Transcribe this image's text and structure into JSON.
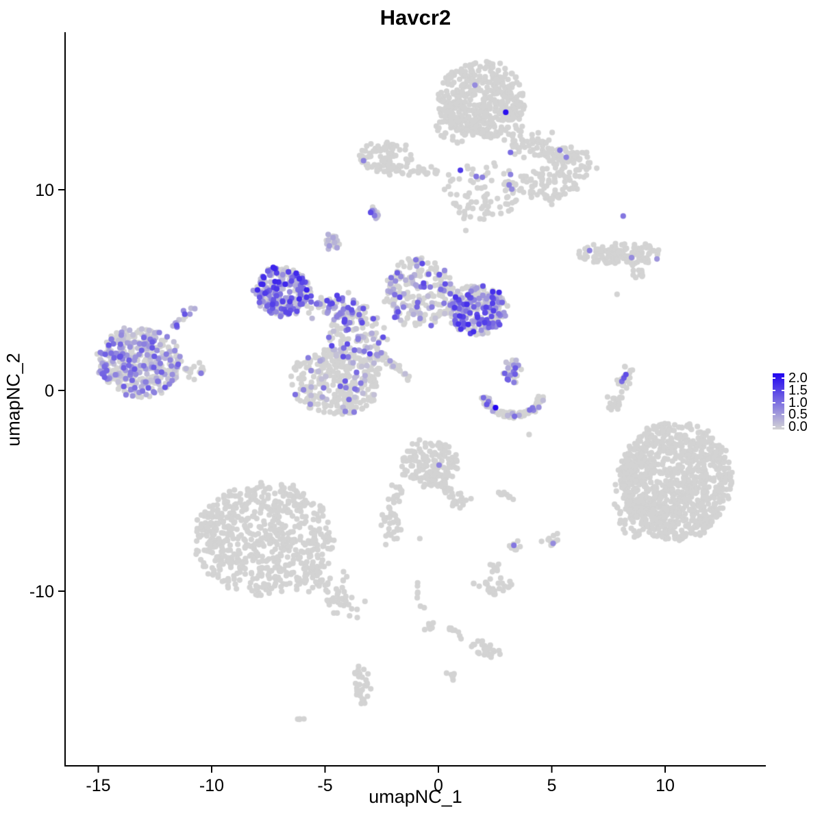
{
  "title": "Havcr2",
  "legend": {
    "ticks": [
      "2.0",
      "1.5",
      "1.0",
      "0.5",
      "0.0"
    ],
    "tick_values": [
      2.0,
      1.5,
      1.0,
      0.5,
      0.0
    ],
    "min": 0.0,
    "max": 2.0,
    "color_low": "#D3D3D3",
    "color_high": "#2105F0"
  },
  "chart_data": {
    "type": "scatter",
    "title": "Havcr2",
    "xlabel": "umapNC_1",
    "ylabel": "umapNC_2",
    "xlim": [
      -16.5,
      14.4
    ],
    "ylim": [
      -18.7,
      17.8
    ],
    "x_ticks": [
      -15,
      -10,
      -5,
      0,
      5,
      10
    ],
    "y_ticks": [
      -10,
      0,
      10
    ],
    "grid": false,
    "legend_position": "right",
    "point_color_zero": "#D3D3D3",
    "point_color_max": "#2105F0",
    "description": "UMAP feature plot of Havcr2 expression (0 to 2) across single cells; gray = no expression, purple-blue = expressing.",
    "clusters": [
      {
        "name": "top-main",
        "type": "ellipse",
        "x": 1.9,
        "y": 14.5,
        "rx": 1.9,
        "ry": 1.9,
        "n": 420,
        "expr": 0,
        "emax": 0
      },
      {
        "name": "top-sub",
        "type": "ellipse",
        "x": 0.75,
        "y": 13.3,
        "rx": 0.85,
        "ry": 0.95,
        "n": 60,
        "expr": 0,
        "emax": 0
      },
      {
        "name": "top-lower-scatter",
        "type": "ellipse",
        "x": 1.9,
        "y": 9.9,
        "rx": 1.8,
        "ry": 1.5,
        "n": 75,
        "expr": 0,
        "emax": 0
      },
      {
        "name": "top-arm-right",
        "type": "band",
        "x1": 3.2,
        "y1": 12.8,
        "x2": 6.4,
        "y2": 11.2,
        "w": 0.35,
        "n": 130,
        "expr": 0,
        "emax": 0
      },
      {
        "name": "top-arm-blob",
        "type": "ellipse",
        "x": 4.9,
        "y": 10.25,
        "rx": 1.35,
        "ry": 0.95,
        "n": 75,
        "expr": 0,
        "emax": 0
      },
      {
        "name": "top-mini-blob",
        "type": "ellipse",
        "x": 3.15,
        "y": 10.15,
        "rx": 0.3,
        "ry": 0.3,
        "n": 10,
        "expr": 0,
        "emax": 0
      },
      {
        "name": "topleft-small",
        "type": "ellipse",
        "x": -2.3,
        "y": 11.6,
        "rx": 1.2,
        "ry": 0.78,
        "n": 85,
        "expr": 0.01,
        "emax": 0.6
      },
      {
        "name": "topleft-trail",
        "type": "band",
        "x1": -1.6,
        "y1": 11.0,
        "x2": -0.1,
        "y2": 10.85,
        "w": 0.12,
        "n": 20,
        "expr": 0,
        "emax": 0
      },
      {
        "name": "purple-streak-mid",
        "type": "band",
        "x1": -3.15,
        "y1": 9.05,
        "x2": -2.6,
        "y2": 8.55,
        "w": 0.1,
        "n": 12,
        "expr": 0.75,
        "emax": 1.2
      },
      {
        "name": "small-blob-mix",
        "type": "ellipse",
        "x": -4.65,
        "y": 7.35,
        "rx": 0.3,
        "ry": 0.42,
        "n": 22,
        "expr": 0.45,
        "emax": 0.7
      },
      {
        "name": "purple-main",
        "type": "ellipse",
        "x": -6.9,
        "y": 4.95,
        "rx": 1.2,
        "ry": 1.25,
        "n": 240,
        "expr": 0.72,
        "emax": 1.6
      },
      {
        "name": "purple-bridge",
        "type": "band",
        "x1": -5.7,
        "y1": 4.4,
        "x2": -3.4,
        "y2": 3.7,
        "w": 0.3,
        "n": 75,
        "expr": 0.5,
        "emax": 1.3
      },
      {
        "name": "center-mix",
        "type": "ellipse",
        "x": -3.6,
        "y": 2.7,
        "rx": 1.3,
        "ry": 1.6,
        "n": 130,
        "expr": 0.42,
        "emax": 1.3
      },
      {
        "name": "center-gray-blob",
        "type": "ellipse",
        "x": -4.5,
        "y": 0.45,
        "rx": 2.05,
        "ry": 1.7,
        "n": 300,
        "expr": 0.13,
        "emax": 1.1
      },
      {
        "name": "diag-streak",
        "type": "band",
        "x1": -2.5,
        "y1": 1.75,
        "x2": -1.2,
        "y2": 0.55,
        "w": 0.08,
        "n": 30,
        "expr": 0.1,
        "emax": 1.0
      },
      {
        "name": "fan-cluster",
        "type": "ellipse",
        "x": -0.85,
        "y": 4.85,
        "rx": 1.5,
        "ry": 1.8,
        "n": 210,
        "expr": 0.33,
        "emax": 1.2
      },
      {
        "name": "right-purple",
        "type": "ellipse",
        "x": 1.7,
        "y": 4.0,
        "rx": 1.3,
        "ry": 1.25,
        "n": 240,
        "expr": 0.55,
        "emax": 1.5
      },
      {
        "name": "crescent-top",
        "type": "ellipse",
        "x": 3.25,
        "y": 1.0,
        "rx": 0.4,
        "ry": 0.65,
        "n": 28,
        "expr": 0.5,
        "emax": 1.2
      },
      {
        "name": "crescent-arc",
        "type": "arc",
        "x": 3.3,
        "y": -0.3,
        "rx": 1.35,
        "ry": 1.0,
        "n": 85,
        "expr": 0.22,
        "emax": 1.2
      },
      {
        "name": "left-big-purple",
        "type": "ellipse",
        "x": -13.2,
        "y": 1.4,
        "rx": 1.8,
        "ry": 1.75,
        "n": 400,
        "expr": 0.5,
        "emax": 1.1
      },
      {
        "name": "left-tail",
        "type": "band",
        "x1": -11.6,
        "y1": 1.15,
        "x2": -10.3,
        "y2": 1.0,
        "w": 0.2,
        "n": 22,
        "expr": 0.1,
        "emax": 0.8
      },
      {
        "name": "left-arm-up",
        "type": "band",
        "x1": -11.9,
        "y1": 3.0,
        "x2": -10.6,
        "y2": 4.4,
        "w": 0.15,
        "n": 15,
        "expr": 0.7,
        "emax": 1.1
      },
      {
        "name": "midright-horizontal",
        "type": "ellipse",
        "x": 8.05,
        "y": 6.8,
        "rx": 1.85,
        "ry": 0.55,
        "n": 115,
        "expr": 0,
        "emax": 0
      },
      {
        "name": "midright-streak",
        "type": "band",
        "x1": 8.55,
        "y1": 6.2,
        "x2": 9.0,
        "y2": 5.7,
        "w": 0.1,
        "n": 10,
        "expr": 0,
        "emax": 0
      },
      {
        "name": "right-comma",
        "type": "band",
        "x1": 7.65,
        "y1": -1.15,
        "x2": 8.35,
        "y2": 1.0,
        "w": 0.12,
        "n": 48,
        "expr": 0,
        "emax": 0
      },
      {
        "name": "right-big",
        "type": "ellipse",
        "x": 10.5,
        "y": -4.5,
        "rx": 2.45,
        "ry": 2.95,
        "n": 900,
        "expr": 0,
        "emax": 0
      },
      {
        "name": "right-big-edge",
        "type": "ellipse",
        "x": 8.7,
        "y": -5.0,
        "rx": 0.9,
        "ry": 2.4,
        "n": 120,
        "expr": 0,
        "emax": 0
      },
      {
        "name": "bottomleft-big",
        "type": "ellipse",
        "x": -7.7,
        "y": -7.4,
        "rx": 3.1,
        "ry": 2.8,
        "n": 650,
        "expr": 0,
        "emax": 0
      },
      {
        "name": "bottomleft-tail",
        "type": "band",
        "x1": -5.55,
        "y1": -9.3,
        "x2": -3.75,
        "y2": -10.8,
        "w": 0.35,
        "n": 60,
        "expr": 0,
        "emax": 0
      },
      {
        "name": "bottom-center",
        "type": "ellipse",
        "x": -0.35,
        "y": -3.6,
        "rx": 1.3,
        "ry": 1.2,
        "n": 150,
        "expr": 0,
        "emax": 0
      },
      {
        "name": "bottom-center-tail",
        "type": "band",
        "x1": 0.3,
        "y1": -4.8,
        "x2": 1.2,
        "y2": -5.8,
        "w": 0.2,
        "n": 30,
        "expr": 0,
        "emax": 0
      },
      {
        "name": "bottom-center-arm",
        "type": "band",
        "x1": -1.8,
        "y1": -4.7,
        "x2": -2.1,
        "y2": -6.2,
        "w": 0.15,
        "n": 20,
        "expr": 0,
        "emax": 0
      },
      {
        "name": "streak-u",
        "type": "band",
        "x1": 2.7,
        "y1": -5.05,
        "x2": 3.3,
        "y2": -5.4,
        "w": 0.08,
        "n": 9,
        "expr": 0,
        "emax": 0
      },
      {
        "name": "left-arm-blob",
        "type": "ellipse",
        "x": -2.1,
        "y": -6.97,
        "rx": 0.4,
        "ry": 0.8,
        "n": 24,
        "expr": 0,
        "emax": 0
      },
      {
        "name": "blob-w1",
        "type": "ellipse",
        "x": 3.35,
        "y": -7.7,
        "rx": 0.25,
        "ry": 0.3,
        "n": 8,
        "expr": 0,
        "emax": 0
      },
      {
        "name": "blob-w2",
        "type": "ellipse",
        "x": 5.1,
        "y": -7.5,
        "rx": 0.3,
        "ry": 0.35,
        "n": 9,
        "expr": 0,
        "emax": 0
      },
      {
        "name": "blob-x",
        "type": "ellipse",
        "x": 2.45,
        "y": -8.85,
        "rx": 0.3,
        "ry": 0.25,
        "n": 8,
        "expr": 0,
        "emax": 0
      },
      {
        "name": "blob-y",
        "type": "ellipse",
        "x": 2.4,
        "y": -9.7,
        "rx": 0.85,
        "ry": 0.4,
        "n": 26,
        "expr": 0,
        "emax": 0
      },
      {
        "name": "trail-z",
        "type": "band",
        "x1": -1.1,
        "y1": -9.4,
        "x2": -0.25,
        "y2": -12.2,
        "w": 0.12,
        "n": 13,
        "expr": 0,
        "emax": 0
      },
      {
        "name": "streak-z2",
        "type": "band",
        "x1": 0.45,
        "y1": -11.9,
        "x2": 1.05,
        "y2": -12.3,
        "w": 0.08,
        "n": 8,
        "expr": 0,
        "emax": 0
      },
      {
        "name": "blob-z3",
        "type": "ellipse",
        "x": 2.1,
        "y": -12.9,
        "rx": 0.7,
        "ry": 0.35,
        "angle": -25,
        "n": 26,
        "expr": 0,
        "emax": 0
      },
      {
        "name": "streak-z4",
        "type": "band",
        "x1": 0.42,
        "y1": -14.0,
        "x2": 0.76,
        "y2": -14.4,
        "w": 0.06,
        "n": 6,
        "expr": 0,
        "emax": 0
      },
      {
        "name": "vert-small",
        "type": "ellipse",
        "x": -3.4,
        "y": -14.7,
        "rx": 0.35,
        "ry": 0.95,
        "n": 30,
        "expr": 0,
        "emax": 0
      },
      {
        "name": "streak-bb",
        "type": "band",
        "x1": -6.25,
        "y1": -16.2,
        "x2": -6.0,
        "y2": -16.5,
        "w": 0.06,
        "n": 4,
        "expr": 0,
        "emax": 0
      }
    ],
    "singles": [
      [
        -3.3,
        11.45,
        0.8
      ],
      [
        1.61,
        15.21,
        0.7
      ],
      [
        2.97,
        13.86,
        1.9
      ],
      [
        3.18,
        11.86,
        1.0
      ],
      [
        5.36,
        11.97,
        0.9
      ],
      [
        5.64,
        11.62,
        0.8
      ],
      [
        3.18,
        10.76,
        0.8
      ],
      [
        0.97,
        10.97,
        1.5
      ],
      [
        1.67,
        10.66,
        0.9
      ],
      [
        1.94,
        10.62,
        0.8
      ],
      [
        3.12,
        10.24,
        0.8
      ],
      [
        3.24,
        10.03,
        0.7
      ],
      [
        8.15,
        8.69,
        0.9
      ],
      [
        6.67,
        6.97,
        0.8
      ],
      [
        8.52,
        6.62,
        0.7
      ],
      [
        9.64,
        6.55,
        0.6
      ],
      [
        0.03,
        -3.72,
        0.8
      ],
      [
        2.52,
        -0.86,
        2.0
      ],
      [
        3.33,
        -7.72,
        0.9
      ],
      [
        5.06,
        -7.62,
        0.7
      ],
      [
        8.27,
        0.79,
        1.3
      ],
      [
        8.18,
        0.62,
        1.2
      ],
      [
        8.09,
        0.45,
        1.0
      ],
      [
        7.88,
        4.79,
        0
      ],
      [
        4.0,
        -2.2,
        0
      ],
      [
        4.55,
        -7.52,
        0
      ],
      [
        -0.82,
        -7.38,
        0
      ],
      [
        1.21,
        7.97,
        0
      ]
    ]
  }
}
